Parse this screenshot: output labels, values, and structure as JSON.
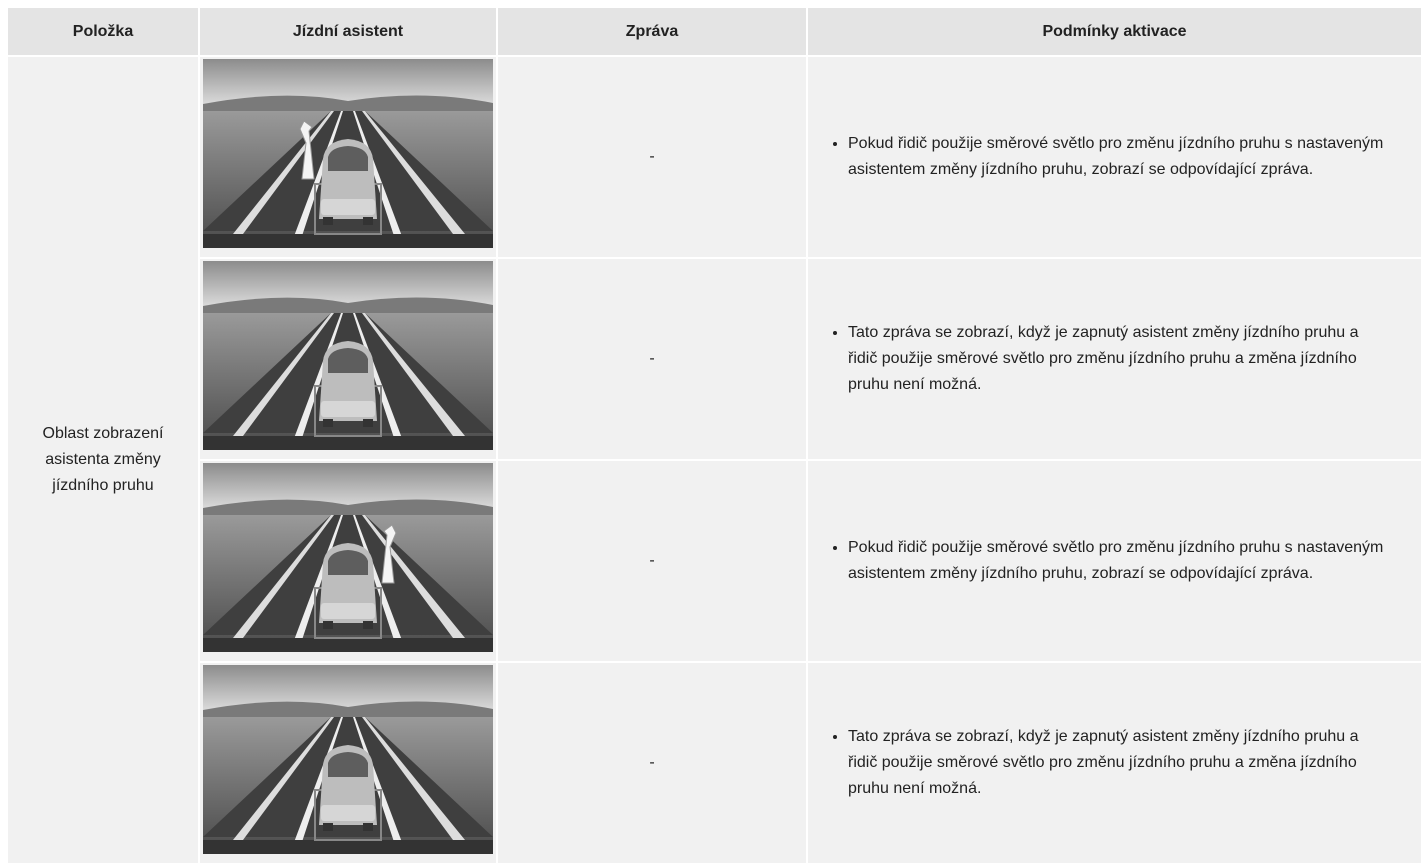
{
  "table": {
    "header": [
      "Položka",
      "Jízdní asistent",
      "Zpráva",
      "Podmínky aktivace"
    ],
    "item": "Oblast zobrazení asistenta změny jízdního pruhu",
    "rows": [
      {
        "message": "-",
        "condition": "Pokud řidič použije směrové světlo pro změnu jízdního pruhu s nastaveným asistentem změny jízdního pruhu, zobrazí se odpovídající zpráva."
      },
      {
        "message": "-",
        "condition": "Tato zpráva se zobrazí, když je zapnutý asistent změny jízdního pruhu a řidič použije směrové světlo pro změnu jízdního pruhu a změna jízdního pruhu není možná."
      },
      {
        "message": "-",
        "condition": "Pokud řidič použije směrové světlo pro změnu jízdního pruhu s nastaveným asistentem změny jízdního pruhu, zobrazí se odpovídající zpráva."
      },
      {
        "message": "-",
        "condition": "Tato zpráva se zobrazí, když je zapnutý asistent změny jízdního pruhu a řidič použije směrové světlo pro změnu jízdního pruhu a změna jízdního pruhu není možná."
      }
    ]
  }
}
